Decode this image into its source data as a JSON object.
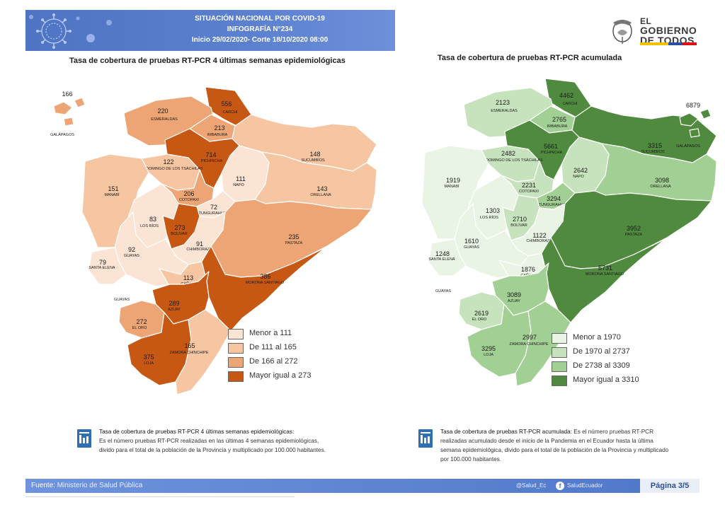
{
  "header": {
    "line1": "SITUACIÓN NACIONAL POR  COVID-19",
    "line2": "INFOGRAFÍA N°234",
    "line3": "Inicio 29/02/2020- Corte 18/10/2020 08:00"
  },
  "logo": {
    "line1": "EL",
    "line2": "GOBIERNO",
    "line3": "DE TODOS"
  },
  "colors": {
    "orange": [
      "#fbe4d4",
      "#f6c6a3",
      "#eea576",
      "#c75814"
    ],
    "green": [
      "#e9f4e4",
      "#c7e3bd",
      "#a2cf93",
      "#4f8a3e"
    ]
  },
  "map_left": {
    "title": "Tasa de cobertura de pruebas RT-PCR 4 últimas semanas epidemiológicas",
    "legend": [
      "Menor a 111",
      "De 111 al 165",
      "De 166 al 272",
      "Mayor igual a 273"
    ],
    "provinces": [
      {
        "name": "CARCHI",
        "value": "556",
        "cls": 3
      },
      {
        "name": "ESMERALDAS",
        "value": "220",
        "cls": 2
      },
      {
        "name": "IMBABURA",
        "value": "213",
        "cls": 2
      },
      {
        "name": "PICHINCHA",
        "value": "714",
        "cls": 3
      },
      {
        "name": "SANTO DOMINGO DE LOS TSÁCHILAS",
        "value": "122",
        "cls": 1
      },
      {
        "name": "SUCUMBÍOS",
        "value": "148",
        "cls": 1
      },
      {
        "name": "MANABÍ",
        "value": "151",
        "cls": 1
      },
      {
        "name": "NAPO",
        "value": "111",
        "cls": 0
      },
      {
        "name": "ORELLANA",
        "value": "143",
        "cls": 1
      },
      {
        "name": "COTOPAXI",
        "value": "206",
        "cls": 2
      },
      {
        "name": "TUNGURAHUA",
        "value": "72",
        "cls": 0
      },
      {
        "name": "LOS RÍOS",
        "value": "83",
        "cls": 0
      },
      {
        "name": "BOLÍVAR",
        "value": "273",
        "cls": 3
      },
      {
        "name": "CHIMBORAZO",
        "value": "91",
        "cls": 0
      },
      {
        "name": "PASTAZA",
        "value": "235",
        "cls": 2
      },
      {
        "name": "GUAYAS",
        "value": "92",
        "cls": 0
      },
      {
        "name": "SANTA ELENA",
        "value": "79",
        "cls": 0
      },
      {
        "name": "CAÑAR",
        "value": "113",
        "cls": 1
      },
      {
        "name": "MORONA SANTIAGO",
        "value": "386",
        "cls": 3
      },
      {
        "name": "AZUAY",
        "value": "289",
        "cls": 3
      },
      {
        "name": "EL ORO",
        "value": "272",
        "cls": 2
      },
      {
        "name": "LOJA",
        "value": "375",
        "cls": 3
      },
      {
        "name": "ZAMORA CHINCHIPE",
        "value": "165",
        "cls": 1
      },
      {
        "name": "GALÁPAGOS",
        "value": "166",
        "cls": 2
      }
    ],
    "extra_labels": [
      "GUAYAS",
      "GALÁPAGOS"
    ]
  },
  "map_right": {
    "title": "Tasa de cobertura de pruebas RT-PCR acumulada",
    "legend": [
      "Menor a 1970",
      "De 1970 al 2737",
      "De 2738 al 3309",
      "Mayor igual a 3310"
    ],
    "provinces": [
      {
        "name": "CARCHI",
        "value": "4462",
        "cls": 3
      },
      {
        "name": "ESMERALDAS",
        "value": "2123",
        "cls": 1
      },
      {
        "name": "IMBABURA",
        "value": "2765",
        "cls": 2
      },
      {
        "name": "PICHINCHA",
        "value": "5661",
        "cls": 3
      },
      {
        "name": "SANTO DOMINGO DE LOS TSÁCHILAS",
        "value": "2482",
        "cls": 1
      },
      {
        "name": "SUCUMBÍOS",
        "value": "3315",
        "cls": 3
      },
      {
        "name": "MANABÍ",
        "value": "1919",
        "cls": 0
      },
      {
        "name": "NAPO",
        "value": "2642",
        "cls": 1
      },
      {
        "name": "ORELLANA",
        "value": "3098",
        "cls": 2
      },
      {
        "name": "COTOPAXI",
        "value": "2231",
        "cls": 1
      },
      {
        "name": "TUNGURAHUA",
        "value": "3294",
        "cls": 2
      },
      {
        "name": "LOS RÍOS",
        "value": "1303",
        "cls": 0
      },
      {
        "name": "BOLÍVAR",
        "value": "2710",
        "cls": 1
      },
      {
        "name": "CHIMBORAZO",
        "value": "1122",
        "cls": 0
      },
      {
        "name": "PASTAZA",
        "value": "3952",
        "cls": 3
      },
      {
        "name": "GUAYAS",
        "value": "1610",
        "cls": 0
      },
      {
        "name": "SANTA ELENA",
        "value": "1248",
        "cls": 0
      },
      {
        "name": "CAÑAR",
        "value": "1876",
        "cls": 0
      },
      {
        "name": "MORONA SANTIAGO",
        "value": "5731",
        "cls": 3
      },
      {
        "name": "AZUAY",
        "value": "3089",
        "cls": 2
      },
      {
        "name": "EL ORO",
        "value": "2619",
        "cls": 1
      },
      {
        "name": "LOJA",
        "value": "3295",
        "cls": 2
      },
      {
        "name": "ZAMORA CHINCHIPE",
        "value": "2997",
        "cls": 2
      },
      {
        "name": "GALÁPAGOS",
        "value": "6879",
        "cls": 3
      }
    ],
    "extra_labels": [
      "GUAYAS",
      "GALÁPAGOS"
    ]
  },
  "note_left": {
    "title": "Tasa de cobertura de pruebas RT-PCR 4 últimas semanas epidemiológicas:",
    "body": "Es el número pruebas RT-PCR realizadas en las últimas 4 semanas epidemiológicas, divido para el total de la población de la Provincia y multiplicado por 100.000 habitantes."
  },
  "note_right": {
    "title": "Tasa de cobertura de pruebas RT-PCR acumulada:",
    "body": "Es el número pruebas RT-PCR realizadas acumulado desde el inicio de la Pandemia en el Ecuador hasta la última semana epidemiológica, divido para el total de la población de la Provincia y multiplicado por 100.000 habitantes."
  },
  "footer": {
    "source_label": "Fuente: ",
    "source": "Ministerio de Salud Pública",
    "twitter": "@Salud_Ec",
    "facebook_icon": "f",
    "facebook": "SaludEcuador",
    "page": "Página 3/5"
  }
}
